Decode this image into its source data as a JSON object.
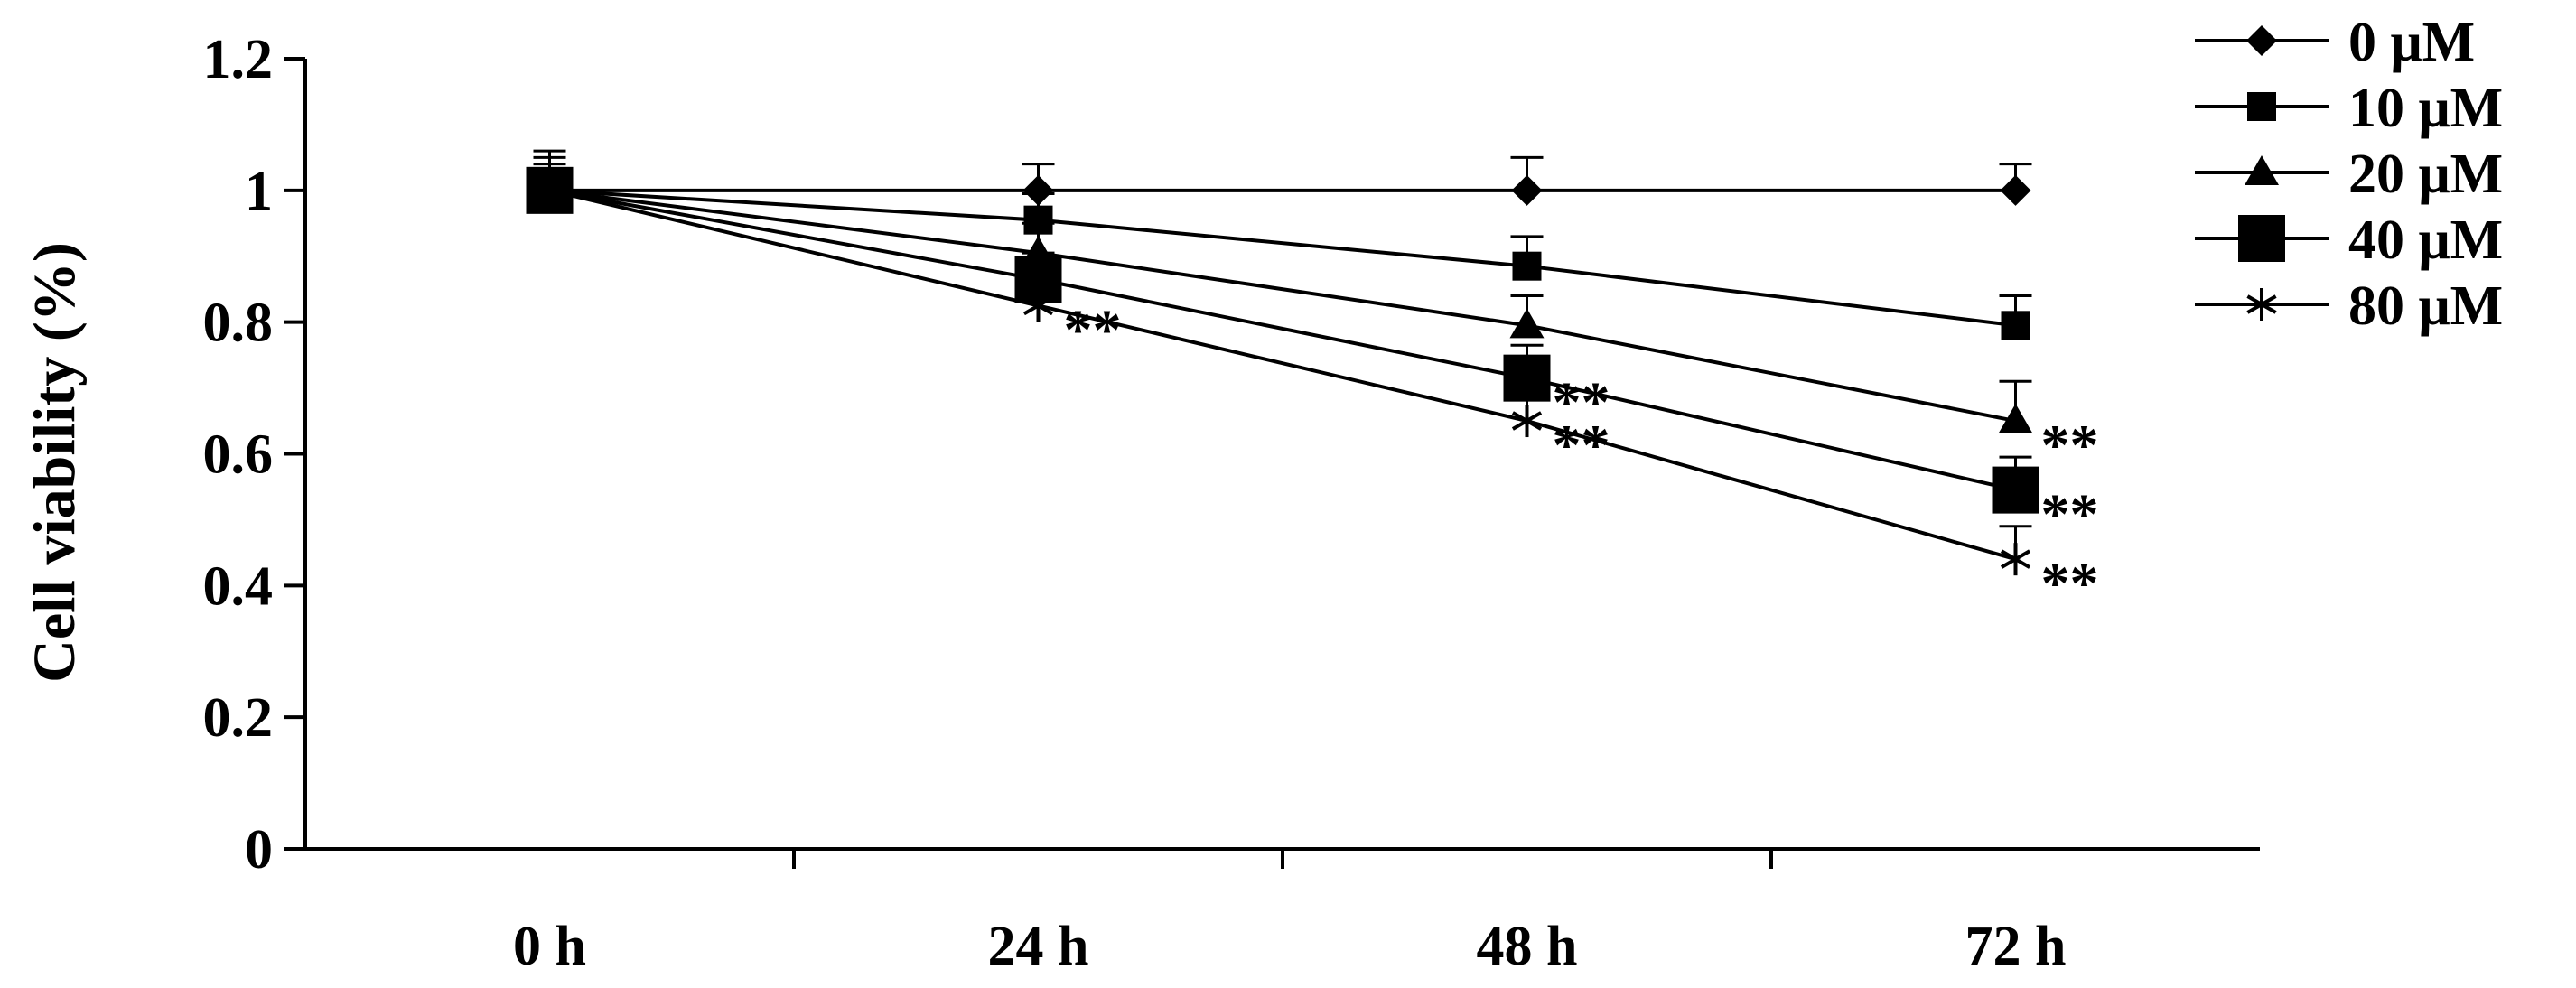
{
  "chart_data": {
    "type": "line",
    "xlabel": "",
    "ylabel": "Cell viability (%)",
    "categories": [
      "0 h",
      "24 h",
      "48 h",
      "72 h"
    ],
    "ylim": [
      0,
      1.2
    ],
    "yticks": [
      "0",
      "0.2",
      "0.4",
      "0.6",
      "0.8",
      "1",
      "1.2"
    ],
    "grid": false,
    "legend_position": "top-right",
    "series": [
      {
        "name": "0 μM",
        "marker": "diamond",
        "values": [
          1.0,
          1.0,
          1.0,
          1.0
        ],
        "errors": [
          0.06,
          0.04,
          0.05,
          0.04
        ],
        "significance": [
          "",
          "",
          "",
          ""
        ]
      },
      {
        "name": "10 μM",
        "marker": "square",
        "values": [
          1.0,
          0.955,
          0.885,
          0.795
        ],
        "errors": [
          0.05,
          0.04,
          0.045,
          0.045
        ],
        "significance": [
          "",
          "",
          "",
          ""
        ]
      },
      {
        "name": "20 μM",
        "marker": "triangle",
        "values": [
          1.0,
          0.905,
          0.795,
          0.65
        ],
        "errors": [
          0.04,
          0.045,
          0.045,
          0.06
        ],
        "significance": [
          "",
          "",
          "",
          "**"
        ]
      },
      {
        "name": "40 μM",
        "marker": "big-square",
        "values": [
          1.0,
          0.865,
          0.715,
          0.545
        ],
        "errors": [
          0.03,
          0.04,
          0.05,
          0.05
        ],
        "significance": [
          "",
          "",
          "**",
          "**"
        ]
      },
      {
        "name": "80 μM",
        "marker": "asterisk",
        "values": [
          1.0,
          0.825,
          0.65,
          0.44
        ],
        "errors": [
          0.03,
          0.03,
          0.04,
          0.05
        ],
        "significance": [
          "",
          "**",
          "**",
          "**"
        ]
      }
    ]
  }
}
